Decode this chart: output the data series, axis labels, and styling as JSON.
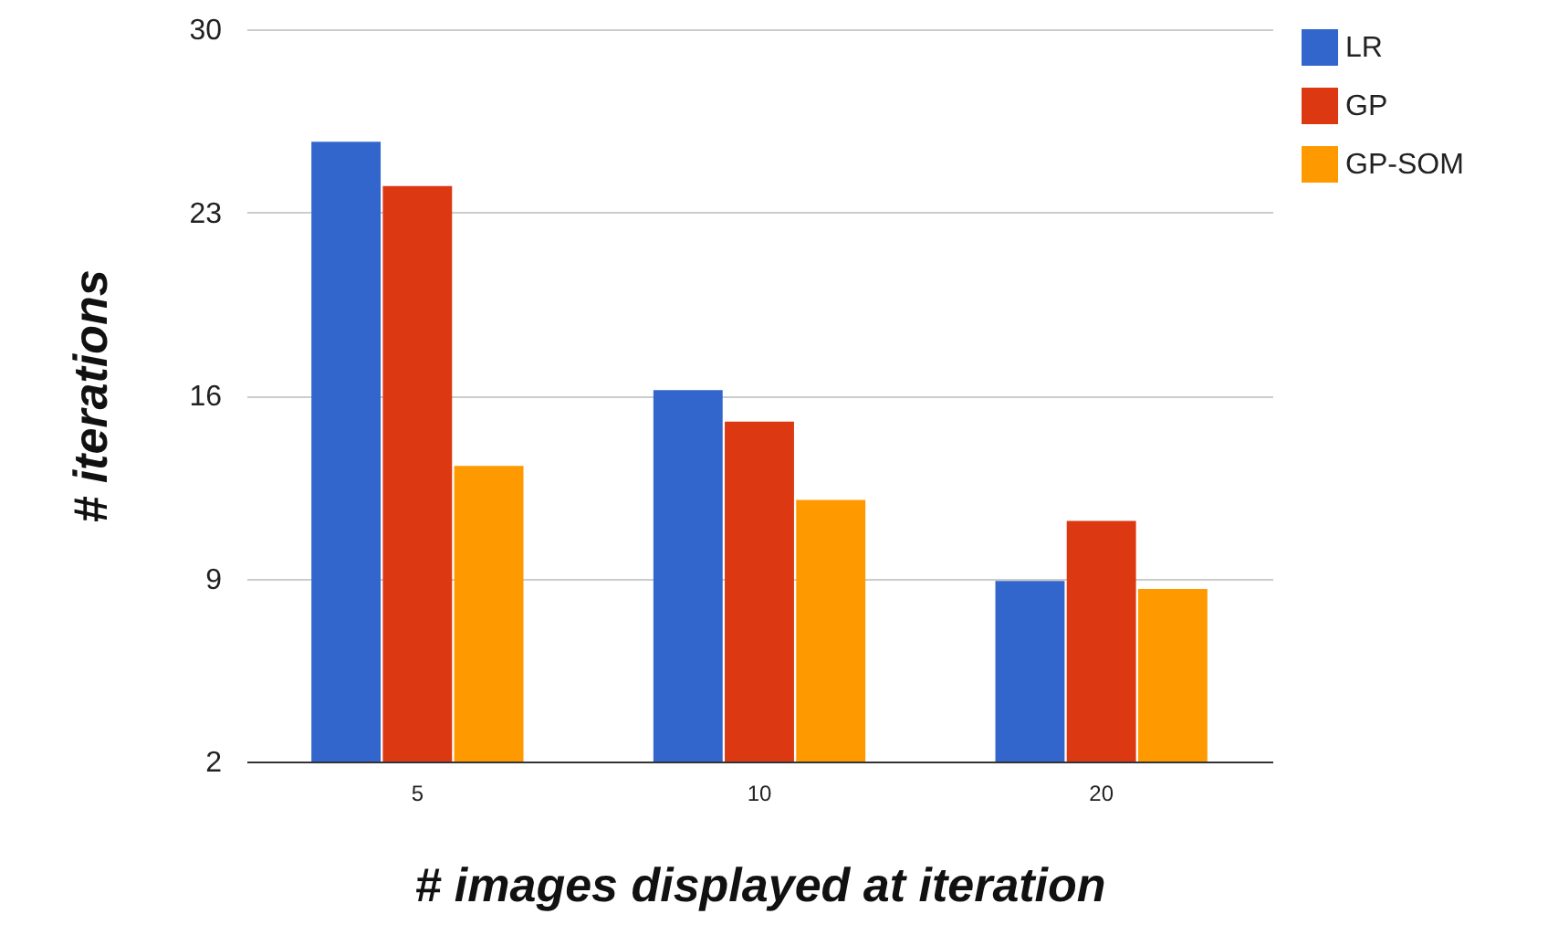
{
  "chart_data": {
    "type": "bar",
    "xlabel": "# images displayed at iteration",
    "ylabel": "# iterations",
    "categories": [
      "5",
      "10",
      "20"
    ],
    "series": [
      {
        "name": "LR",
        "color": "#3366cc",
        "values": [
          25.7,
          16.2,
          8.9
        ]
      },
      {
        "name": "GP",
        "color": "#dc3912",
        "values": [
          24.0,
          15.0,
          11.2
        ]
      },
      {
        "name": "GP-SOM",
        "color": "#ff9900",
        "values": [
          13.3,
          12.0,
          8.6
        ]
      }
    ],
    "ylim": [
      2,
      30
    ],
    "yticks": [
      2,
      9,
      16,
      23,
      30
    ],
    "grid": "y",
    "legend": "top right"
  }
}
